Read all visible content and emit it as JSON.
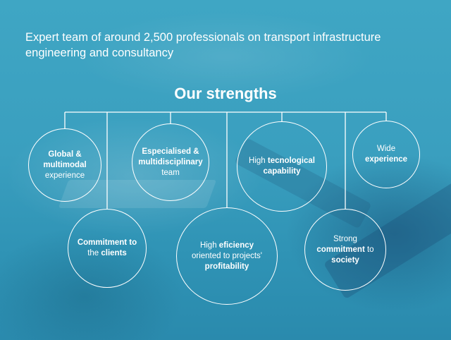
{
  "headline": "Expert team of around 2,500 professionals on transport infrastructure engineering and consultancy",
  "title": "Our strengths",
  "strengths": [
    {
      "parts": [
        {
          "t": "Global &",
          "b": true
        },
        {
          "br": true
        },
        {
          "t": "multimodal",
          "b": true
        },
        {
          "br": true
        },
        {
          "t": "experience",
          "b": false
        }
      ]
    },
    {
      "parts": [
        {
          "t": "Commitment to",
          "b": true
        },
        {
          "br": true
        },
        {
          "t": "the ",
          "b": false
        },
        {
          "t": "clients",
          "b": true
        }
      ]
    },
    {
      "parts": [
        {
          "t": "Especialised &",
          "b": true
        },
        {
          "br": true
        },
        {
          "t": "multidisciplinary",
          "b": true
        },
        {
          "br": true
        },
        {
          "t": "team",
          "b": false
        }
      ]
    },
    {
      "parts": [
        {
          "t": "High ",
          "b": false
        },
        {
          "t": "eficiency",
          "b": true
        },
        {
          "br": true
        },
        {
          "t": "oriented to projects'",
          "b": false
        },
        {
          "br": true
        },
        {
          "t": "profitability",
          "b": true
        }
      ]
    },
    {
      "parts": [
        {
          "t": "High ",
          "b": false
        },
        {
          "t": "tecnological",
          "b": true
        },
        {
          "br": true
        },
        {
          "t": "capability",
          "b": true
        }
      ]
    },
    {
      "parts": [
        {
          "t": "Strong",
          "b": false
        },
        {
          "br": true
        },
        {
          "t": "commitment",
          "b": true
        },
        {
          "t": " to",
          "b": false
        },
        {
          "br": true
        },
        {
          "t": "society",
          "b": true
        }
      ]
    },
    {
      "parts": [
        {
          "t": "Wide",
          "b": false
        },
        {
          "br": true
        },
        {
          "t": "experience",
          "b": true
        }
      ]
    }
  ],
  "colors": {
    "line": "#ffffff",
    "text": "#ffffff",
    "background": "#3a9fbf"
  }
}
